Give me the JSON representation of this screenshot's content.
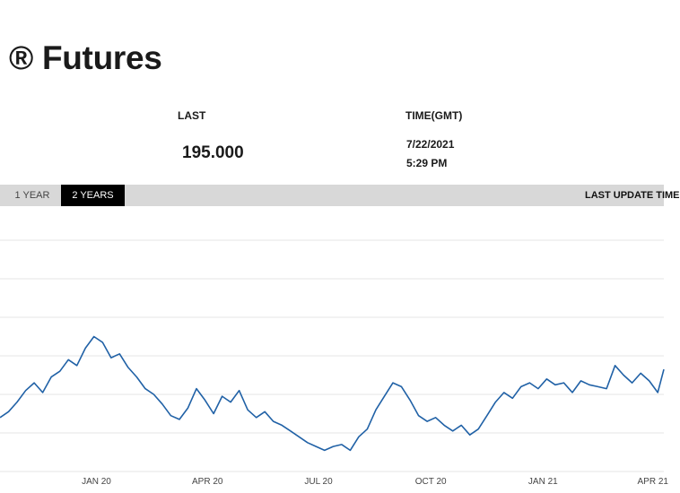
{
  "page": {
    "title": "® Futures"
  },
  "quote": {
    "last_label": "LAST",
    "last_value": "195.000",
    "time_label": "TIME(GMT)",
    "time_date": "7/22/2021",
    "time_clock": "5:29 PM"
  },
  "range": {
    "tabs": [
      {
        "label": "1 YEAR",
        "active": false
      },
      {
        "label": "2 YEARS",
        "active": true
      }
    ],
    "last_update_label": "LAST UPDATE TIME"
  },
  "colors": {
    "line": "#2061a6",
    "grid": "#e6e6e6",
    "active_tab": "#000000",
    "range_bar": "#d8d8d8"
  },
  "chart_data": {
    "type": "line",
    "x_tick_labels": [
      "JAN 20",
      "APR 20",
      "JUL 20",
      "OCT 20",
      "JAN 21",
      "APR 21"
    ],
    "x_tick_dates": [
      "2020-01-01",
      "2020-04-01",
      "2020-07-01",
      "2020-10-01",
      "2021-01-01",
      "2021-04-01"
    ],
    "x_range": [
      "2019-10-14",
      "2021-04-10"
    ],
    "y_gridlines": 6,
    "y_range": [
      0,
      6
    ],
    "grid": true,
    "series": [
      {
        "values": [
          [
            "2019-10-14",
            1.4
          ],
          [
            "2019-10-21",
            1.55
          ],
          [
            "2019-10-28",
            1.8
          ],
          [
            "2019-11-04",
            2.1
          ],
          [
            "2019-11-11",
            2.3
          ],
          [
            "2019-11-18",
            2.05
          ],
          [
            "2019-11-25",
            2.45
          ],
          [
            "2019-12-02",
            2.6
          ],
          [
            "2019-12-09",
            2.9
          ],
          [
            "2019-12-16",
            2.75
          ],
          [
            "2019-12-23",
            3.2
          ],
          [
            "2019-12-30",
            3.5
          ],
          [
            "2020-01-06",
            3.35
          ],
          [
            "2020-01-13",
            2.95
          ],
          [
            "2020-01-20",
            3.05
          ],
          [
            "2020-01-27",
            2.7
          ],
          [
            "2020-02-03",
            2.45
          ],
          [
            "2020-02-10",
            2.15
          ],
          [
            "2020-02-17",
            2.0
          ],
          [
            "2020-02-24",
            1.75
          ],
          [
            "2020-03-02",
            1.45
          ],
          [
            "2020-03-09",
            1.35
          ],
          [
            "2020-03-16",
            1.65
          ],
          [
            "2020-03-23",
            2.15
          ],
          [
            "2020-03-30",
            1.85
          ],
          [
            "2020-04-06",
            1.5
          ],
          [
            "2020-04-13",
            1.95
          ],
          [
            "2020-04-20",
            1.8
          ],
          [
            "2020-04-27",
            2.1
          ],
          [
            "2020-05-04",
            1.6
          ],
          [
            "2020-05-11",
            1.4
          ],
          [
            "2020-05-18",
            1.55
          ],
          [
            "2020-05-25",
            1.3
          ],
          [
            "2020-06-01",
            1.2
          ],
          [
            "2020-06-08",
            1.05
          ],
          [
            "2020-06-15",
            0.9
          ],
          [
            "2020-06-22",
            0.75
          ],
          [
            "2020-06-29",
            0.65
          ],
          [
            "2020-07-06",
            0.55
          ],
          [
            "2020-07-13",
            0.65
          ],
          [
            "2020-07-20",
            0.7
          ],
          [
            "2020-07-27",
            0.55
          ],
          [
            "2020-08-03",
            0.9
          ],
          [
            "2020-08-10",
            1.1
          ],
          [
            "2020-08-17",
            1.6
          ],
          [
            "2020-08-24",
            1.95
          ],
          [
            "2020-08-31",
            2.3
          ],
          [
            "2020-09-07",
            2.2
          ],
          [
            "2020-09-14",
            1.85
          ],
          [
            "2020-09-21",
            1.45
          ],
          [
            "2020-09-28",
            1.3
          ],
          [
            "2020-10-05",
            1.4
          ],
          [
            "2020-10-12",
            1.2
          ],
          [
            "2020-10-19",
            1.05
          ],
          [
            "2020-10-26",
            1.2
          ],
          [
            "2020-11-02",
            0.95
          ],
          [
            "2020-11-09",
            1.1
          ],
          [
            "2020-11-16",
            1.45
          ],
          [
            "2020-11-23",
            1.8
          ],
          [
            "2020-11-30",
            2.05
          ],
          [
            "2020-12-07",
            1.9
          ],
          [
            "2020-12-14",
            2.2
          ],
          [
            "2020-12-21",
            2.3
          ],
          [
            "2020-12-28",
            2.15
          ],
          [
            "2021-01-04",
            2.4
          ],
          [
            "2021-01-11",
            2.25
          ],
          [
            "2021-01-18",
            2.3
          ],
          [
            "2021-01-25",
            2.05
          ],
          [
            "2021-02-01",
            2.35
          ],
          [
            "2021-02-08",
            2.25
          ],
          [
            "2021-02-15",
            2.2
          ],
          [
            "2021-02-22",
            2.15
          ],
          [
            "2021-03-01",
            2.75
          ],
          [
            "2021-03-08",
            2.5
          ],
          [
            "2021-03-15",
            2.3
          ],
          [
            "2021-03-22",
            2.55
          ],
          [
            "2021-03-29",
            2.35
          ],
          [
            "2021-04-05",
            2.05
          ],
          [
            "2021-04-10",
            2.65
          ]
        ]
      }
    ]
  }
}
